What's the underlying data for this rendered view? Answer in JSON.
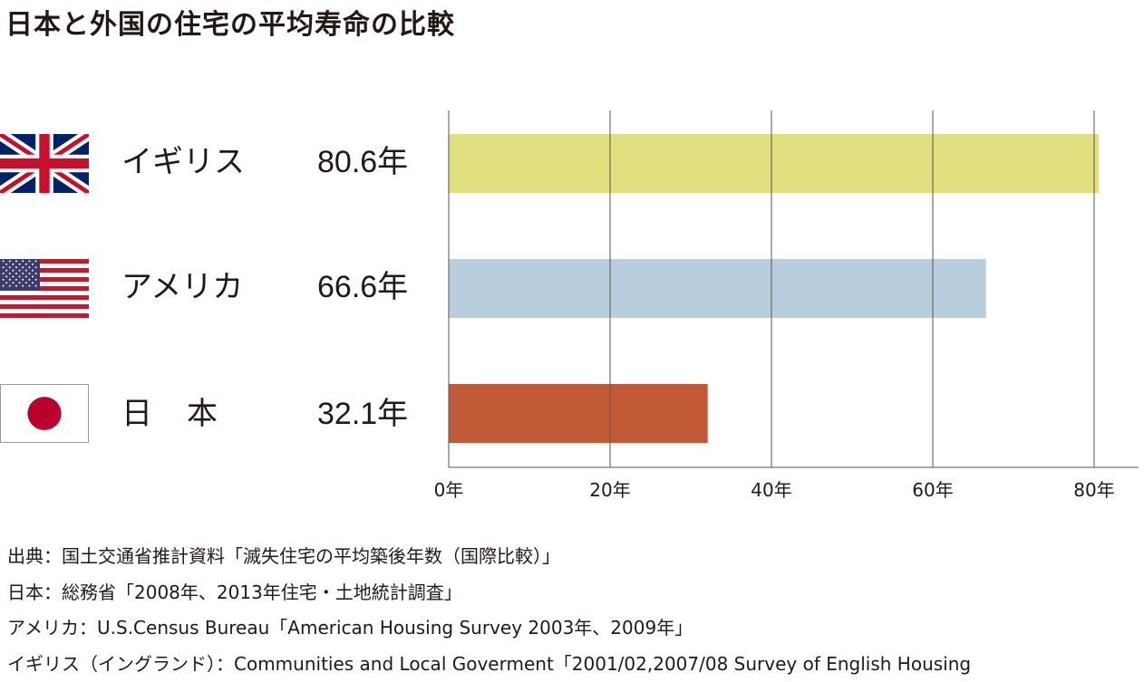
{
  "title": "日本と外国の住宅の平均寿命の比較",
  "colors": {
    "uk_bar": "#e0e07f",
    "us_bar": "#b8cede",
    "jp_bar": "#c25a38",
    "grid": "#555555",
    "text": "#231815"
  },
  "chart_data": {
    "type": "bar",
    "orientation": "horizontal",
    "title": "日本と外国の住宅の平均寿命の比較",
    "categories": [
      "イギリス",
      "アメリカ",
      "日　本"
    ],
    "values": [
      80.6,
      66.6,
      32.1
    ],
    "value_labels": [
      "80.6年",
      "66.6年",
      "32.1年"
    ],
    "flags": [
      "uk-flag-icon",
      "us-flag-icon",
      "japan-flag-icon"
    ],
    "xlim": [
      0,
      86
    ],
    "x_ticks": [
      0,
      20,
      40,
      60,
      80
    ],
    "x_tick_labels": [
      "0年",
      "20年",
      "40年",
      "60年",
      "80年"
    ],
    "grid": true
  },
  "sources": [
    "出典：国土交通省推計資料「滅失住宅の平均築後年数（国際比較）」",
    "日本：総務省「2008年、2013年住宅・土地統計調査」",
    "アメリカ：U.S.Census Bureau「American Housing Survey 2003年、2009年」",
    "イギリス（イングランド）：Communities and Local Goverment「2001/02,2007/08 Survey of English Housing"
  ]
}
